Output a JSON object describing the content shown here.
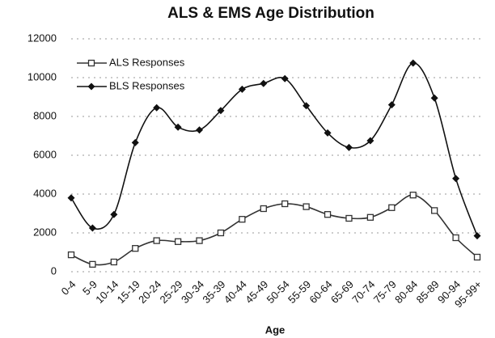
{
  "chart_data": {
    "type": "line",
    "title": "ALS & EMS Age Distribution",
    "x_label": "Age",
    "categories": [
      "0-4",
      "5-9",
      "10-14",
      "15-19",
      "20-24",
      "25-29",
      "30-34",
      "35-39",
      "40-44",
      "45-49",
      "50-54",
      "55-59",
      "60-64",
      "65-69",
      "70-74",
      "75-79",
      "80-84",
      "85-89",
      "90-94",
      "95-99+"
    ],
    "series": [
      {
        "name": "ALS Responses",
        "color": "#333333",
        "marker": "square",
        "values": [
          870,
          380,
          500,
          1200,
          1600,
          1550,
          1600,
          2000,
          2700,
          3250,
          3500,
          3350,
          2950,
          2750,
          2800,
          3300,
          3950,
          3150,
          1750,
          750
        ]
      },
      {
        "name": "BLS Responses",
        "color": "#111111",
        "marker": "diamond",
        "values": [
          3800,
          2250,
          2950,
          6650,
          8450,
          7450,
          7300,
          8300,
          9400,
          9700,
          9950,
          8550,
          7150,
          6400,
          6750,
          8600,
          10750,
          8950,
          4800,
          1850
        ]
      }
    ],
    "ylim": [
      0,
      12000
    ],
    "yticks": [
      0,
      2000,
      4000,
      6000,
      8000,
      10000,
      12000
    ],
    "grid": true,
    "legend": "top-left"
  }
}
